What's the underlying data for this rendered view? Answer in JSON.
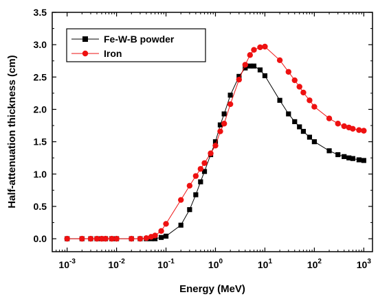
{
  "chart_data": {
    "type": "line",
    "xlabel": "Energy (MeV)",
    "ylabel": "Half-attenuation thickness (cm)",
    "xscale": "log",
    "xlim": [
      0.0005,
      1500
    ],
    "ylim": [
      -0.2,
      3.5
    ],
    "x_ticks": [
      {
        "value": 0.001,
        "base": "10",
        "exp": "-3"
      },
      {
        "value": 0.01,
        "base": "10",
        "exp": "-2"
      },
      {
        "value": 0.1,
        "base": "10",
        "exp": "-1"
      },
      {
        "value": 1,
        "base": "10",
        "exp": "0"
      },
      {
        "value": 10,
        "base": "10",
        "exp": "1"
      },
      {
        "value": 100,
        "base": "10",
        "exp": "2"
      },
      {
        "value": 1000,
        "base": "10",
        "exp": "3"
      }
    ],
    "y_ticks": [
      "0.0",
      "0.5",
      "1.0",
      "1.5",
      "2.0",
      "2.5",
      "3.0",
      "3.5"
    ],
    "grid": false,
    "legend_position": "top-left",
    "series": [
      {
        "name": "Fe-W-B powder",
        "color": "#000000",
        "marker": "square",
        "x": [
          0.001,
          0.002,
          0.003,
          0.004,
          0.005,
          0.006,
          0.008,
          0.01,
          0.02,
          0.03,
          0.04,
          0.05,
          0.06,
          0.08,
          0.1,
          0.2,
          0.3,
          0.4,
          0.5,
          0.6,
          0.8,
          1,
          1.25,
          1.5,
          2,
          3,
          4,
          5,
          6,
          8,
          10,
          20,
          30,
          40,
          50,
          60,
          80,
          100,
          200,
          300,
          400,
          500,
          600,
          800,
          1000
        ],
        "y": [
          0.0,
          0.0,
          0.0,
          0.0,
          0.0,
          0.0,
          0.0,
          0.0,
          0.0,
          0.0,
          0.0,
          0.0,
          0.0,
          0.02,
          0.04,
          0.21,
          0.45,
          0.68,
          0.88,
          1.04,
          1.3,
          1.5,
          1.76,
          1.93,
          2.22,
          2.51,
          2.64,
          2.67,
          2.67,
          2.61,
          2.52,
          2.14,
          1.93,
          1.81,
          1.73,
          1.66,
          1.57,
          1.5,
          1.36,
          1.3,
          1.27,
          1.25,
          1.24,
          1.22,
          1.21
        ]
      },
      {
        "name": "Iron",
        "color": "#ee1111",
        "marker": "circle",
        "x": [
          0.001,
          0.002,
          0.003,
          0.004,
          0.005,
          0.006,
          0.008,
          0.01,
          0.02,
          0.03,
          0.04,
          0.05,
          0.06,
          0.08,
          0.1,
          0.2,
          0.3,
          0.4,
          0.5,
          0.6,
          0.8,
          1,
          1.25,
          1.5,
          2,
          3,
          4,
          5,
          6,
          8,
          10,
          20,
          30,
          40,
          50,
          60,
          80,
          100,
          200,
          300,
          400,
          500,
          600,
          800,
          1000
        ],
        "y": [
          0.0,
          0.0,
          0.0,
          0.0,
          0.0,
          0.0,
          0.0,
          0.0,
          0.0,
          0.0,
          0.01,
          0.03,
          0.05,
          0.12,
          0.23,
          0.6,
          0.82,
          0.97,
          1.08,
          1.17,
          1.32,
          1.44,
          1.66,
          1.78,
          2.08,
          2.46,
          2.69,
          2.84,
          2.92,
          2.96,
          2.97,
          2.76,
          2.58,
          2.45,
          2.35,
          2.26,
          2.14,
          2.04,
          1.86,
          1.78,
          1.74,
          1.72,
          1.7,
          1.68,
          1.67
        ]
      }
    ]
  }
}
